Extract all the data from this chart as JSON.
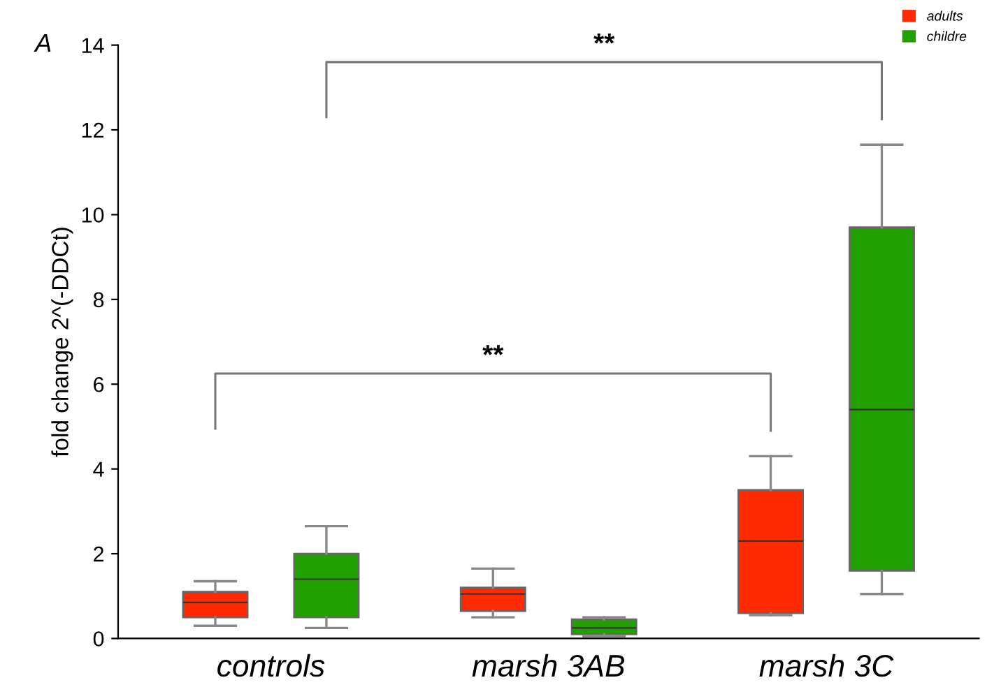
{
  "chart_data": {
    "type": "box",
    "title": "A",
    "ylabel": "fold change 2^(-DDCt)",
    "categories": [
      "controls",
      "marsh 3AB",
      "marsh 3C"
    ],
    "ylim": [
      0,
      14
    ],
    "yticks": [
      0,
      2,
      4,
      6,
      8,
      10,
      12,
      14
    ],
    "grid": false,
    "legend": "top right",
    "series": [
      {
        "name": "adults",
        "color": "#ff2a00",
        "boxes": [
          {
            "low": 0.3,
            "q1": 0.5,
            "median": 0.85,
            "q3": 1.1,
            "high": 1.35
          },
          {
            "low": 0.5,
            "q1": 0.65,
            "median": 1.05,
            "q3": 1.2,
            "high": 1.65
          },
          {
            "low": 0.55,
            "q1": 0.6,
            "median": 2.3,
            "q3": 3.5,
            "high": 4.3
          }
        ]
      },
      {
        "name": "childre",
        "color": "#22a000",
        "boxes": [
          {
            "low": 0.25,
            "q1": 0.5,
            "median": 1.4,
            "q3": 2.0,
            "high": 2.65
          },
          {
            "low": 0.05,
            "q1": 0.1,
            "median": 0.25,
            "q3": 0.45,
            "high": 0.5
          },
          {
            "low": 1.05,
            "q1": 1.6,
            "median": 5.4,
            "q3": 9.7,
            "high": 11.65
          }
        ]
      }
    ],
    "annotations": [
      "**",
      "**"
    ]
  }
}
